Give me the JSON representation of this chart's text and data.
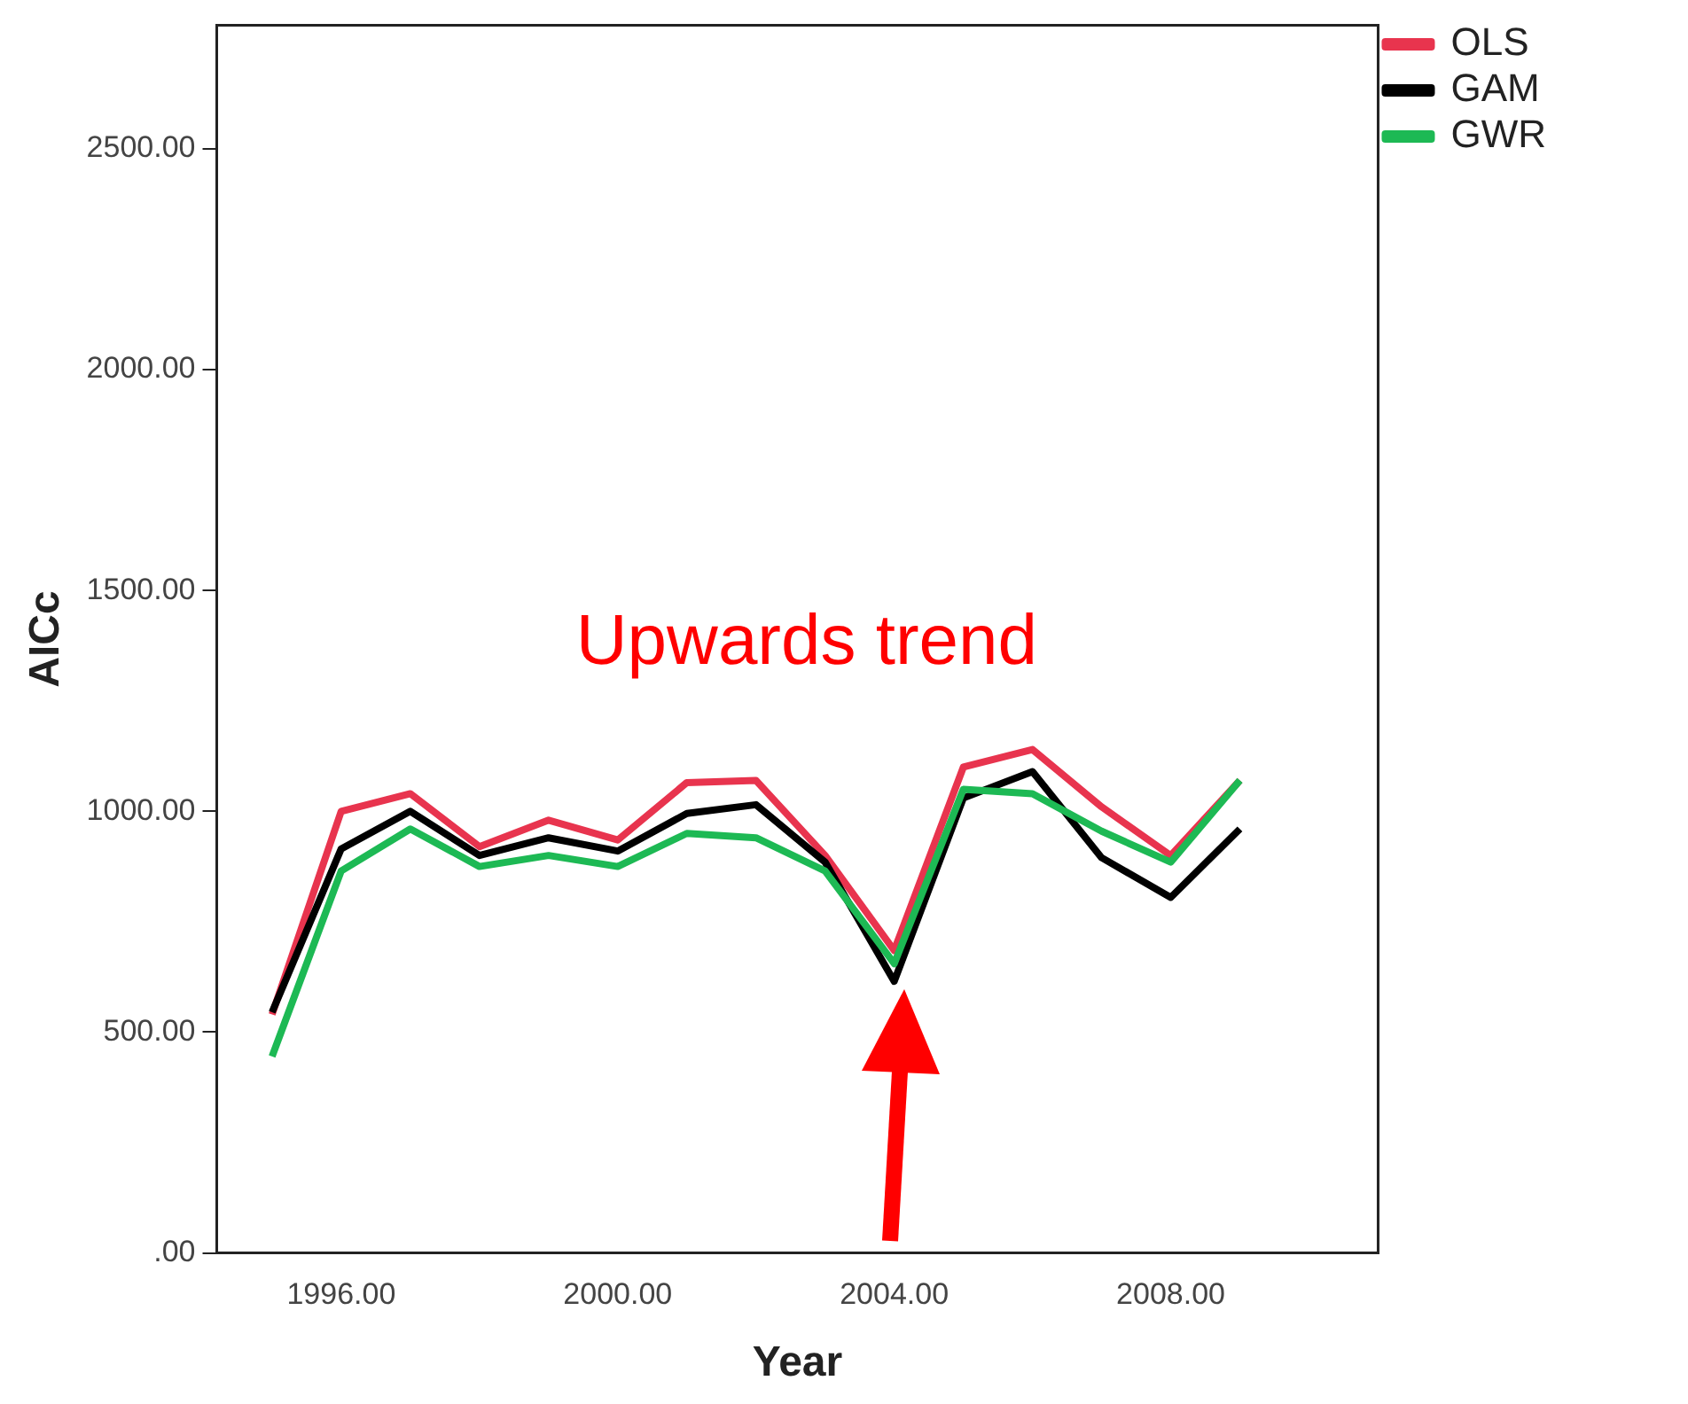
{
  "chart_data": {
    "type": "line",
    "xlabel": "Year",
    "ylabel": "AICc",
    "x": [
      1995,
      1996,
      1997,
      1998,
      1999,
      2000,
      2001,
      2002,
      2003,
      2004,
      2005,
      2006,
      2007,
      2008,
      2009
    ],
    "series": [
      {
        "name": "OLS",
        "color": "#e8344e",
        "values": [
          540,
          1000,
          1040,
          920,
          980,
          935,
          1065,
          1070,
          900,
          685,
          1100,
          1140,
          1010,
          900,
          1070
        ]
      },
      {
        "name": "GAM",
        "color": "#000000",
        "values": [
          545,
          915,
          1000,
          900,
          940,
          910,
          995,
          1015,
          885,
          615,
          1030,
          1090,
          895,
          805,
          960
        ]
      },
      {
        "name": "GWR",
        "color": "#1db954",
        "values": [
          445,
          865,
          960,
          875,
          900,
          875,
          950,
          940,
          865,
          655,
          1050,
          1040,
          955,
          885,
          1070
        ]
      }
    ],
    "xlim": [
      1994.2,
      2011
    ],
    "ylim": [
      0,
      2780
    ],
    "xticks": [
      {
        "value": 1996,
        "label": "1996.00"
      },
      {
        "value": 2000,
        "label": "2000.00"
      },
      {
        "value": 2004,
        "label": "2004.00"
      },
      {
        "value": 2008,
        "label": "2008.00"
      }
    ],
    "yticks": [
      {
        "value": 0,
        "label": ".00"
      },
      {
        "value": 500,
        "label": "500.00"
      },
      {
        "value": 1000,
        "label": "1000.00"
      },
      {
        "value": 1500,
        "label": "1500.00"
      },
      {
        "value": 2000,
        "label": "2000.00"
      },
      {
        "value": 2500,
        "label": "2500.00"
      }
    ],
    "grid": false,
    "legend": "top right",
    "marker": "none",
    "line_style": "solid",
    "annotations": [
      "Upwards trend"
    ]
  }
}
